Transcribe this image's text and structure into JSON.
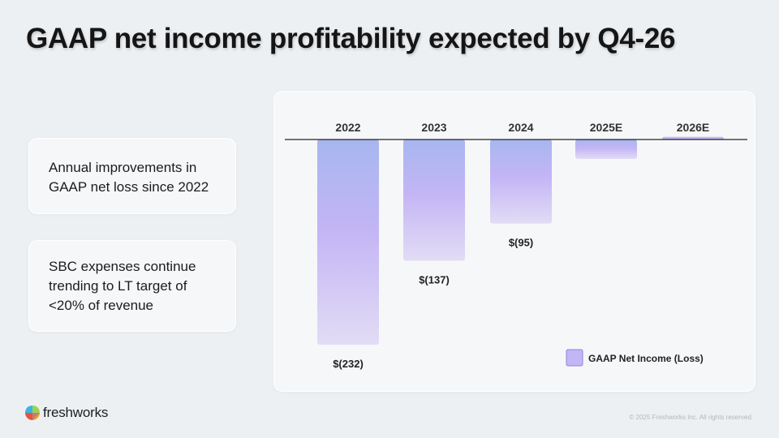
{
  "slide": {
    "title": "GAAP net income profitability expected by Q4-26",
    "notes": [
      "Annual improvements in GAAP net loss since 2022",
      "SBC expenses continue trending to LT target of <20% of revenue"
    ]
  },
  "footer": {
    "brand": "freshworks",
    "copyright": "© 2025 Freshworks Inc. All rights reserved."
  },
  "colors": {
    "bar_top": "#a7b6ef",
    "bar_mid": "#c4b5f5",
    "bar_bottom": "#e2dcf5",
    "axis": "#222222"
  },
  "chart_data": {
    "type": "bar",
    "categories": [
      "2022",
      "2023",
      "2024",
      "2025E",
      "2026E"
    ],
    "series": [
      {
        "name": "GAAP Net Income (Loss)",
        "values": [
          -232,
          -137,
          -95,
          -22,
          -3
        ],
        "labels": [
          "$(232)",
          "$(137)",
          "$(95)",
          "",
          ""
        ]
      }
    ],
    "legend": "GAAP Net Income (Loss)",
    "legend_position": "bottom-right",
    "ylim": [
      -232,
      0
    ],
    "unit": "$M"
  }
}
